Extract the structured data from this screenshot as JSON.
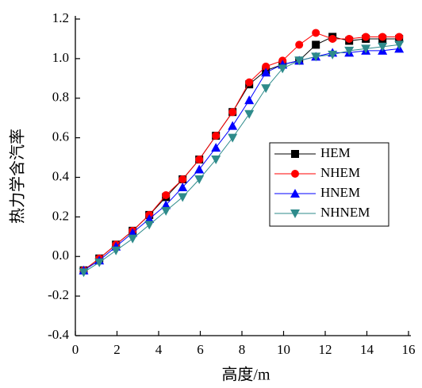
{
  "chart_data": {
    "type": "line",
    "x_label": "高度/m",
    "y_label": "热力学含汽率",
    "x": [
      0.4,
      1.15,
      1.95,
      2.75,
      3.55,
      4.35,
      5.15,
      5.95,
      6.75,
      7.55,
      8.35,
      9.15,
      9.95,
      10.75,
      11.55,
      12.35,
      13.15,
      13.95,
      14.75,
      15.55
    ],
    "series": [
      {
        "name": "HEM",
        "color": "#000000",
        "marker": "square",
        "values": [
          -0.07,
          -0.01,
          0.06,
          0.13,
          0.21,
          0.3,
          0.39,
          0.49,
          0.61,
          0.73,
          0.87,
          0.94,
          0.97,
          0.99,
          1.07,
          1.11,
          1.09,
          1.1,
          1.1,
          1.1
        ]
      },
      {
        "name": "NHEM",
        "color": "#ff0000",
        "marker": "circle",
        "values": [
          -0.07,
          -0.01,
          0.06,
          0.13,
          0.21,
          0.31,
          0.39,
          0.49,
          0.61,
          0.73,
          0.88,
          0.96,
          0.99,
          1.07,
          1.13,
          1.1,
          1.1,
          1.11,
          1.11,
          1.11
        ]
      },
      {
        "name": "HNEM",
        "color": "#0000ff",
        "marker": "triangle-up",
        "values": [
          -0.07,
          -0.02,
          0.05,
          0.12,
          0.19,
          0.26,
          0.35,
          0.44,
          0.55,
          0.66,
          0.79,
          0.93,
          0.97,
          0.99,
          1.01,
          1.03,
          1.03,
          1.04,
          1.04,
          1.05
        ]
      },
      {
        "name": "NHNEM",
        "color": "#2e8b8b",
        "marker": "triangle-down",
        "values": [
          -0.08,
          -0.03,
          0.03,
          0.09,
          0.16,
          0.23,
          0.3,
          0.39,
          0.49,
          0.6,
          0.72,
          0.85,
          0.95,
          0.99,
          1.01,
          1.02,
          1.04,
          1.05,
          1.06,
          1.07
        ]
      }
    ],
    "xlim": [
      0,
      16
    ],
    "xticks": [
      0,
      2,
      4,
      6,
      8,
      10,
      12,
      14,
      16
    ],
    "ylim": [
      -0.4,
      1.2
    ],
    "yticks": [
      -0.4,
      -0.2,
      {
        "value": 0,
        "label": "0.0"
      },
      0.2,
      0.4,
      0.6,
      0.8,
      {
        "value": 1,
        "label": "1.0"
      },
      1.2
    ],
    "legend": "center right",
    "grid": false
  }
}
